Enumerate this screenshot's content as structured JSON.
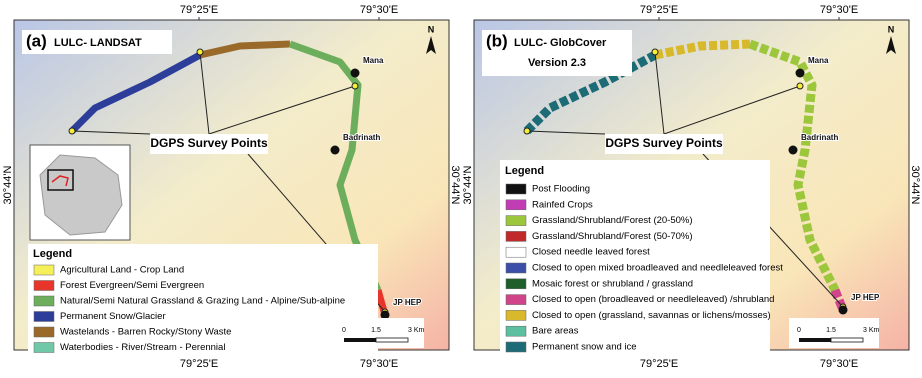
{
  "panels": [
    {
      "label": "(a)",
      "title": [
        "LULC- LANDSAT"
      ],
      "coords": {
        "top": [
          "79°25'E",
          "79°30'E"
        ],
        "bottom": [
          "79°25'E",
          "79°30'E"
        ],
        "left": "30°44'N",
        "right": "30°44'N"
      },
      "places": [
        "Mana",
        "Badrinath",
        "JP HEP"
      ],
      "annotation": "DGPS Survey Points",
      "legend": {
        "title": "Legend",
        "items": [
          {
            "label": "Agricultural Land - Crop Land",
            "color": "#f5ef5a"
          },
          {
            "label": "Forest Evergreen/Semi Evergreen",
            "color": "#e8352b"
          },
          {
            "label": "Natural/Semi Natural Grassland & Grazing Land - Alpine/Sub-alpine",
            "color": "#6cae5c"
          },
          {
            "label": "Permanent Snow/Glacier",
            "color": "#2c3e9a"
          },
          {
            "label": "Wastelands - Barren Rocky/Stony Waste",
            "color": "#9a6a2a"
          },
          {
            "label": "Waterbodies - River/Stream - Perennial",
            "color": "#6fc9a6"
          }
        ]
      },
      "scale": [
        "0",
        "1.5",
        "3 Km"
      ],
      "north": "N"
    },
    {
      "label": "(b)",
      "title": [
        "LULC- GlobCover",
        "Version 2.3"
      ],
      "coords": {
        "top": [
          "79°25'E",
          "79°30'E"
        ],
        "bottom": [
          "79°25'E",
          "79°30'E"
        ],
        "left": "30°44'N",
        "right": "30°44'N"
      },
      "places": [
        "Mana",
        "Badrinath",
        "JP HEP"
      ],
      "annotation": "DGPS Survey Points",
      "legend": {
        "title": "Legend",
        "items": [
          {
            "label": "Post Flooding",
            "color": "#111111"
          },
          {
            "label": "Rainfed Crops",
            "color": "#c23db5"
          },
          {
            "label": "Grassland/Shrubland/Forest (20-50%)",
            "color": "#9cc63b"
          },
          {
            "label": "Grassland/Shrubland/Forest (50-70%)",
            "color": "#c02a2a"
          },
          {
            "label": "Closed needle leaved forest",
            "color": "#ffffff"
          },
          {
            "label": "Closed to open mixed broadleaved and needleleaved forest",
            "color": "#3b4fa8"
          },
          {
            "label": "Mosaic forest or shrubland / grassland",
            "color": "#1f5e2a"
          },
          {
            "label": "Closed to open (broadleaved or needleleaved) /shrubland",
            "color": "#d0458a"
          },
          {
            "label": "Closed to open (grassland, savannas or lichens/mosses)",
            "color": "#d9b92c"
          },
          {
            "label": "Bare areas",
            "color": "#5cbfa0"
          },
          {
            "label": "Permanent snow and ice",
            "color": "#1e6b78"
          }
        ]
      },
      "scale": [
        "0",
        "1.5",
        "3 Km"
      ],
      "north": "N"
    }
  ]
}
